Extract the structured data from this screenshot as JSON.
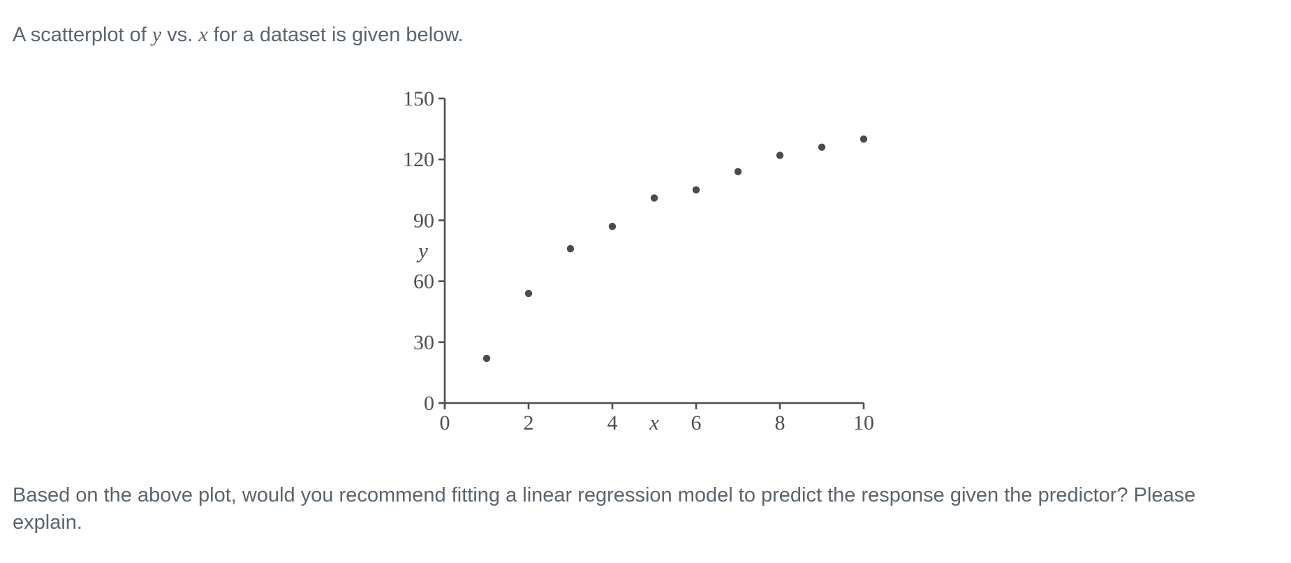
{
  "intro": {
    "part1": "A scatterplot of ",
    "var_y": "y",
    "part2": " vs. ",
    "var_x": "x",
    "part3": " for a dataset is given below."
  },
  "question": "Based on the above plot, would you recommend fitting a linear regression model to predict the response given the predictor? Please explain.",
  "colors": {
    "body_text": "#5a646d",
    "axis": "#4f4f4f",
    "chart_label": "#4f4f4f",
    "point": "#4b4b4b",
    "background": "#ffffff"
  },
  "chart_data": {
    "type": "scatter",
    "title": "",
    "xlabel": "x",
    "ylabel": "y",
    "x": [
      1,
      2,
      3,
      4,
      5,
      6,
      7,
      8,
      9,
      10
    ],
    "y": [
      22,
      54,
      76,
      87,
      101,
      105,
      114,
      122,
      126,
      130
    ],
    "xlim": [
      0,
      10
    ],
    "ylim": [
      0,
      150
    ],
    "x_ticks": [
      0,
      2,
      4,
      6,
      8,
      10
    ],
    "y_ticks": [
      0,
      30,
      60,
      90,
      120,
      150
    ],
    "grid": false,
    "legend": null,
    "point_color": "#4b4b4b",
    "axis_color": "#4f4f4f",
    "shape_note": "concave increasing, logarithmic-like trend"
  }
}
